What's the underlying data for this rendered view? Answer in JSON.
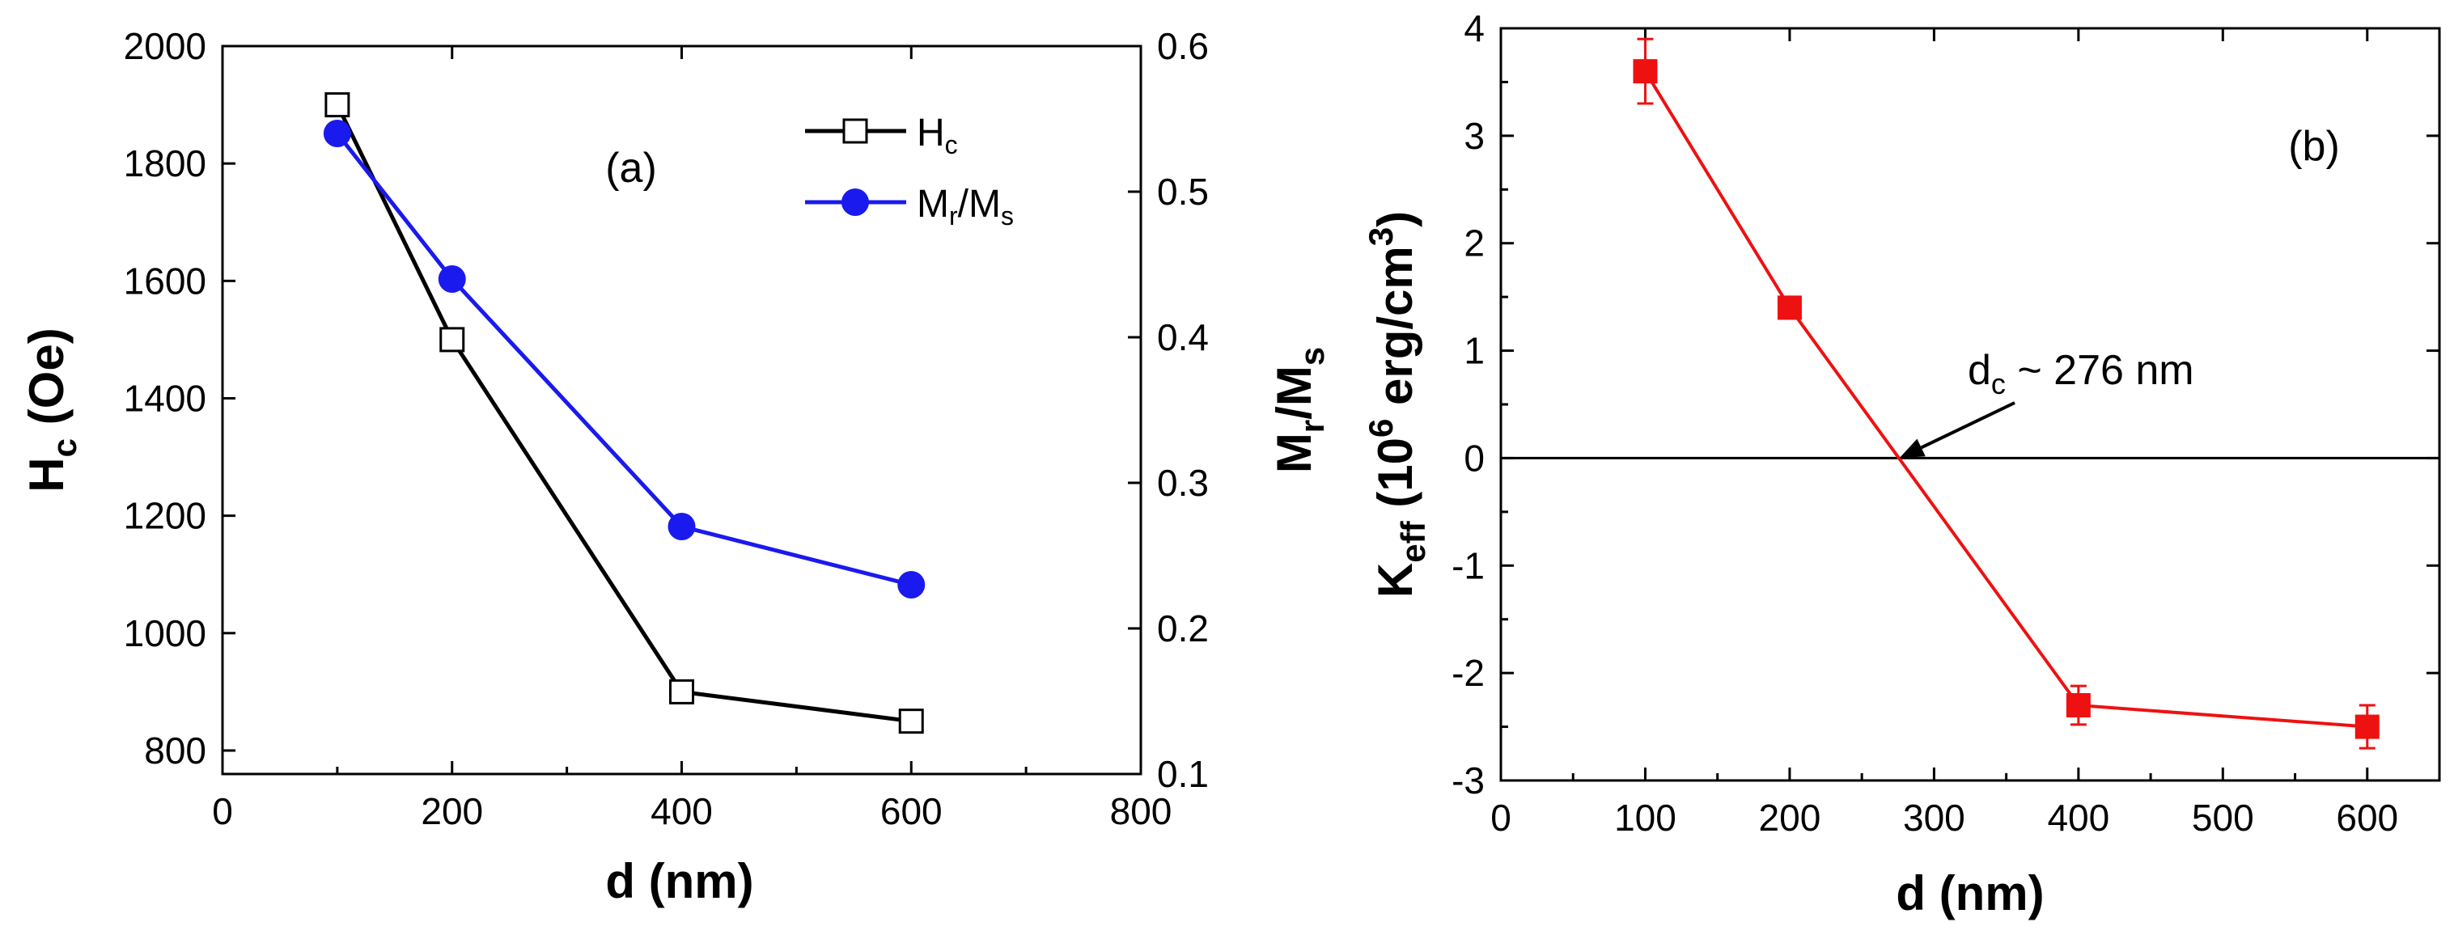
{
  "colors": {
    "hc": "#000000",
    "mr": "#1a1aee",
    "keff": "#ee1111"
  },
  "chart_data": [
    {
      "type": "line",
      "panel_label": "(a)",
      "xlabel": "d (nm)",
      "ylabel": "H_c (Oe)",
      "ylabel_parts": {
        "main": "H",
        "sub": "c",
        "tail": " (Oe)"
      },
      "y2label": "M_r/M_s",
      "y2label_parts": {
        "main": "M",
        "sub1": "r",
        "mid": "/M",
        "sub2": "s"
      },
      "xlim": [
        0,
        800
      ],
      "ylim": [
        760,
        2000
      ],
      "y2lim": [
        0.1,
        0.6
      ],
      "xticks": [
        "0",
        "200",
        "400",
        "600",
        "800"
      ],
      "yticks": [
        "800",
        "1000",
        "1200",
        "1400",
        "1600",
        "1800",
        "2000"
      ],
      "y2ticks": [
        "0.1",
        "0.2",
        "0.3",
        "0.4",
        "0.5",
        "0.6"
      ],
      "series": [
        {
          "name": "Hc",
          "legend_main": "H",
          "legend_sub": "c",
          "axis": "left",
          "marker": "open-square",
          "x": [
            100,
            200,
            400,
            600
          ],
          "values": [
            1900,
            1500,
            900,
            850
          ]
        },
        {
          "name": "Mr/Ms",
          "legend_main": "M",
          "legend_sub1": "r",
          "legend_mid": "/M",
          "legend_sub2": "s",
          "axis": "right",
          "marker": "filled-circle",
          "x": [
            100,
            200,
            400,
            600
          ],
          "values": [
            0.54,
            0.44,
            0.27,
            0.23
          ]
        }
      ],
      "legend_position": "top-right"
    },
    {
      "type": "line",
      "panel_label": "(b)",
      "xlabel": "d (nm)",
      "ylabel": "K_eff (10^6 erg/cm^3)",
      "ylabel_parts": {
        "main": "K",
        "sub": "eff",
        "open": " (10",
        "sup": "6",
        "unit": " erg/cm",
        "sup2": "3",
        "close": ")"
      },
      "xlim": [
        0,
        650
      ],
      "ylim": [
        -3,
        4
      ],
      "xticks": [
        "0",
        "100",
        "200",
        "300",
        "400",
        "500",
        "600"
      ],
      "yticks": [
        "-3",
        "-2",
        "-1",
        "0",
        "1",
        "2",
        "3",
        "4"
      ],
      "series": [
        {
          "name": "Keff",
          "marker": "filled-square",
          "x": [
            100,
            200,
            400,
            600
          ],
          "values": [
            3.6,
            1.4,
            -2.3,
            -2.5
          ],
          "errors": [
            0.3,
            0.05,
            0.18,
            0.2
          ]
        }
      ],
      "reference_line": {
        "y": 0
      },
      "annotation": {
        "prefix": "d",
        "sub": "c",
        "suffix": " ~ 276 nm",
        "x": 276,
        "y": 0
      }
    }
  ]
}
